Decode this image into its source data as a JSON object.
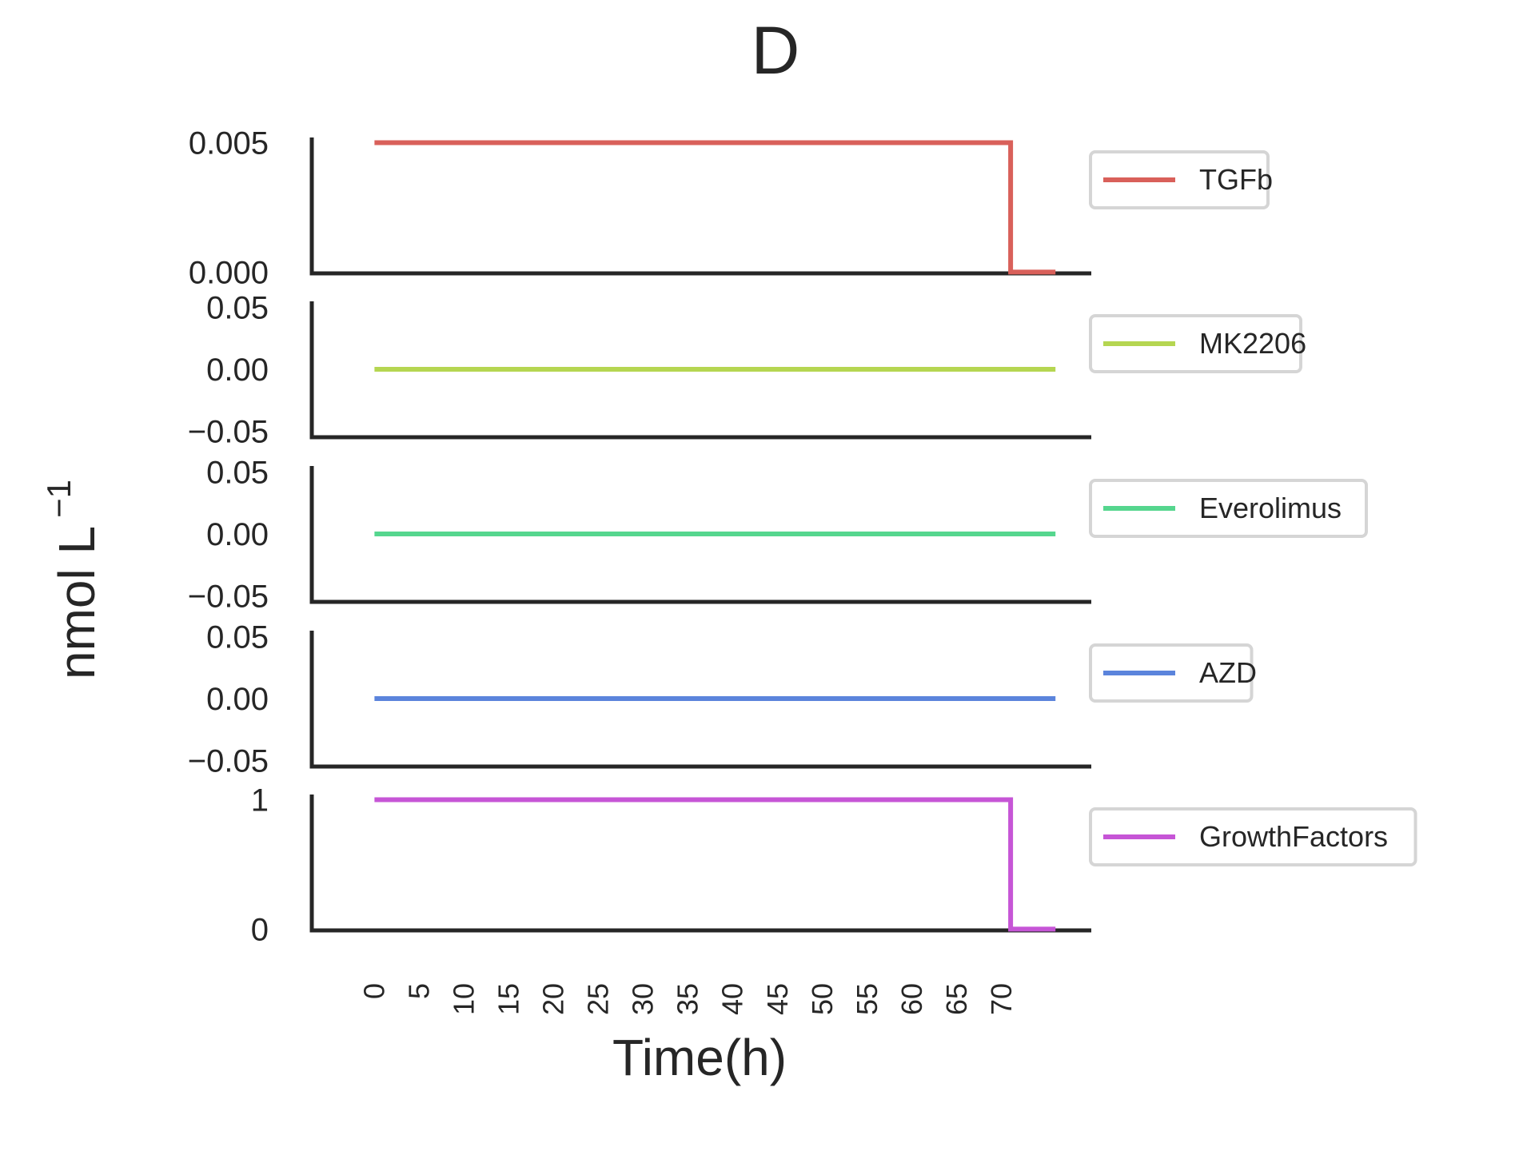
{
  "chart_data": {
    "type": "line",
    "title": "D",
    "xlabel": "Time(h)",
    "ylabel": {
      "base": "nmol L",
      "exponent": "−1"
    },
    "xlim": [
      -7,
      80
    ],
    "x_ticks": [
      0,
      5,
      10,
      15,
      20,
      25,
      30,
      35,
      40,
      45,
      50,
      55,
      60,
      65,
      70
    ],
    "x_tick_labels": [
      "0",
      "5",
      "10",
      "15",
      "20",
      "25",
      "30",
      "35",
      "40",
      "45",
      "50",
      "55",
      "60",
      "65",
      "70"
    ],
    "grid": false,
    "legend_placement": "right of each panel",
    "panels": [
      {
        "name": "TGFb",
        "color": "#d9605a",
        "ylim": [
          -5e-05,
          0.0052
        ],
        "y_ticks": [
          0.0,
          0.005
        ],
        "y_tick_labels": [
          "0.000",
          "0.005"
        ],
        "x": [
          0,
          71,
          71,
          76
        ],
        "y": [
          0.005,
          0.005,
          0.0,
          0.0
        ]
      },
      {
        "name": "MK2206",
        "color": "#b5d651",
        "ylim": [
          -0.055,
          0.055
        ],
        "y_ticks": [
          -0.05,
          0.0,
          0.05
        ],
        "y_tick_labels": [
          "−0.05",
          "0.00",
          "0.05"
        ],
        "x": [
          0,
          76
        ],
        "y": [
          0.0,
          0.0
        ]
      },
      {
        "name": "Everolimus",
        "color": "#55d68e",
        "ylim": [
          -0.055,
          0.055
        ],
        "y_ticks": [
          -0.05,
          0.0,
          0.05
        ],
        "y_tick_labels": [
          "−0.05",
          "0.00",
          "0.05"
        ],
        "x": [
          0,
          76
        ],
        "y": [
          0.0,
          0.0
        ]
      },
      {
        "name": "AZD",
        "color": "#5b84dc",
        "ylim": [
          -0.055,
          0.055
        ],
        "y_ticks": [
          -0.05,
          0.0,
          0.05
        ],
        "y_tick_labels": [
          "−0.05",
          "0.00",
          "0.05"
        ],
        "x": [
          0,
          76
        ],
        "y": [
          0.0,
          0.0
        ]
      },
      {
        "name": "GrowthFactors",
        "color": "#c655d6",
        "ylim": [
          -0.01,
          1.04
        ],
        "y_ticks": [
          0,
          1
        ],
        "y_tick_labels": [
          "0",
          "1"
        ],
        "x": [
          0,
          71,
          71,
          76
        ],
        "y": [
          1,
          1,
          0,
          0
        ]
      }
    ]
  }
}
